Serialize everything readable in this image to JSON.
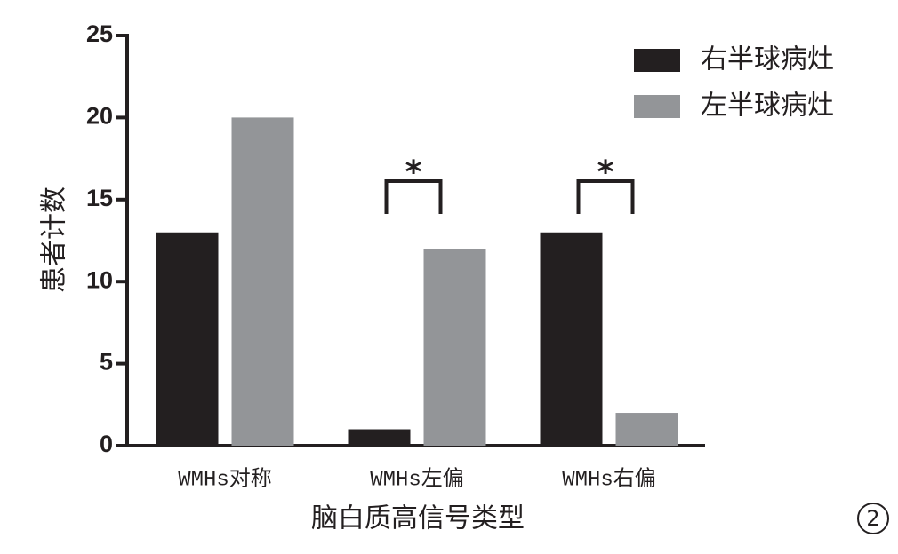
{
  "chart_data": {
    "type": "bar",
    "x_label": "脑白质高信号类型",
    "y_label": "患者计数",
    "figure_label": "2",
    "categories": [
      "WMHs对称",
      "WMHs左偏",
      "WMHs右偏"
    ],
    "series": [
      {
        "name": "右半球病灶",
        "color": "#231f20",
        "values": [
          13,
          1,
          13
        ]
      },
      {
        "name": "左半球病灶",
        "color": "#939598",
        "values": [
          20,
          12,
          2
        ]
      }
    ],
    "annotations": [
      null,
      "*",
      "*"
    ],
    "ylim": [
      0,
      25
    ],
    "yticks": [
      0,
      5,
      10,
      15,
      20,
      25
    ],
    "legend": "top-right"
  }
}
